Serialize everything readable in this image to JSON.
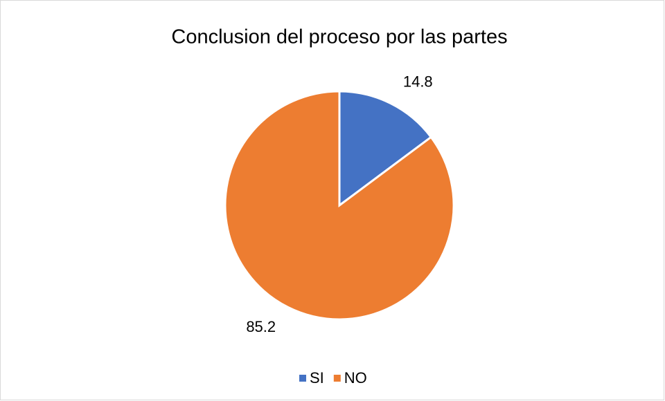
{
  "chart_data": {
    "type": "pie",
    "title": "Conclusion del proceso por las partes",
    "categories": [
      "SI",
      "NO"
    ],
    "values": [
      14.8,
      85.2
    ],
    "colors": [
      "#4472c4",
      "#ed7d31"
    ],
    "legend": "bottom"
  }
}
